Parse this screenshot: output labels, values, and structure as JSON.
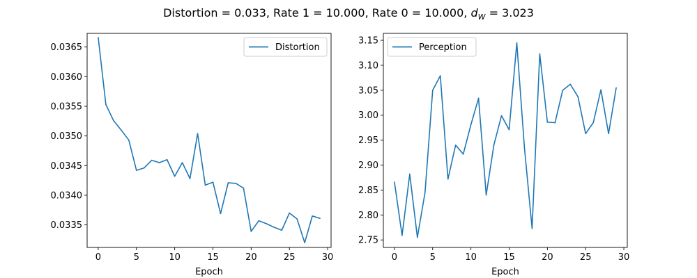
{
  "figure": {
    "title": "Distortion = 0.033, Rate 1 = 10.000, Rate 0 = 10.000, ",
    "title_math_var": "d",
    "title_math_sub": "W",
    "title_tail": " = 3.023"
  },
  "chart_data": [
    {
      "type": "line",
      "xlabel": "Epoch",
      "ylabel": "",
      "xlim": [
        -1.45,
        30.45
      ],
      "ylim": [
        0.03312,
        0.03673
      ],
      "x_ticks": [
        0,
        5,
        10,
        15,
        20,
        25,
        30
      ],
      "y_ticks": [
        0.0335,
        0.034,
        0.0345,
        0.035,
        0.0355,
        0.036,
        0.0365
      ],
      "y_tick_labels": [
        "0.0335",
        "0.0340",
        "0.0345",
        "0.0350",
        "0.0355",
        "0.0360",
        "0.0365"
      ],
      "legend_position": "upper right",
      "color": "#1f77b4",
      "series": [
        {
          "name": "Distortion",
          "x": [
            0,
            1,
            2,
            3,
            4,
            5,
            6,
            7,
            8,
            9,
            10,
            11,
            12,
            13,
            14,
            15,
            16,
            17,
            18,
            19,
            20,
            21,
            22,
            23,
            24,
            25,
            26,
            27,
            28,
            29
          ],
          "values": [
            0.03666,
            0.03553,
            0.03526,
            0.0351,
            0.03493,
            0.03442,
            0.03446,
            0.03459,
            0.03455,
            0.0346,
            0.03432,
            0.03455,
            0.03428,
            0.03504,
            0.03417,
            0.03422,
            0.03369,
            0.03421,
            0.0342,
            0.03412,
            0.03339,
            0.03357,
            0.03352,
            0.03346,
            0.03341,
            0.0337,
            0.0336,
            0.0332,
            0.03365,
            0.03361
          ]
        }
      ]
    },
    {
      "type": "line",
      "xlabel": "Epoch",
      "ylabel": "",
      "xlim": [
        -1.45,
        30.45
      ],
      "ylim": [
        2.735,
        3.164
      ],
      "x_ticks": [
        0,
        5,
        10,
        15,
        20,
        25,
        30
      ],
      "y_ticks": [
        2.75,
        2.8,
        2.85,
        2.9,
        2.95,
        3.0,
        3.05,
        3.1,
        3.15
      ],
      "y_tick_labels": [
        "2.75",
        "2.80",
        "2.85",
        "2.90",
        "2.95",
        "3.00",
        "3.05",
        "3.10",
        "3.15"
      ],
      "legend_position": "upper left",
      "color": "#1f77b4",
      "series": [
        {
          "name": "Perception",
          "x": [
            0,
            1,
            2,
            3,
            4,
            5,
            6,
            7,
            8,
            9,
            10,
            11,
            12,
            13,
            14,
            15,
            16,
            17,
            18,
            19,
            20,
            21,
            22,
            23,
            24,
            25,
            26,
            27,
            28,
            29
          ],
          "values": [
            2.866,
            2.759,
            2.882,
            2.755,
            2.845,
            3.05,
            3.079,
            2.872,
            2.94,
            2.922,
            2.981,
            3.034,
            2.84,
            2.94,
            2.999,
            2.971,
            3.145,
            2.935,
            2.773,
            3.123,
            2.986,
            2.985,
            3.05,
            3.062,
            3.037,
            2.963,
            2.985,
            3.051,
            2.963,
            3.055
          ]
        }
      ]
    }
  ]
}
